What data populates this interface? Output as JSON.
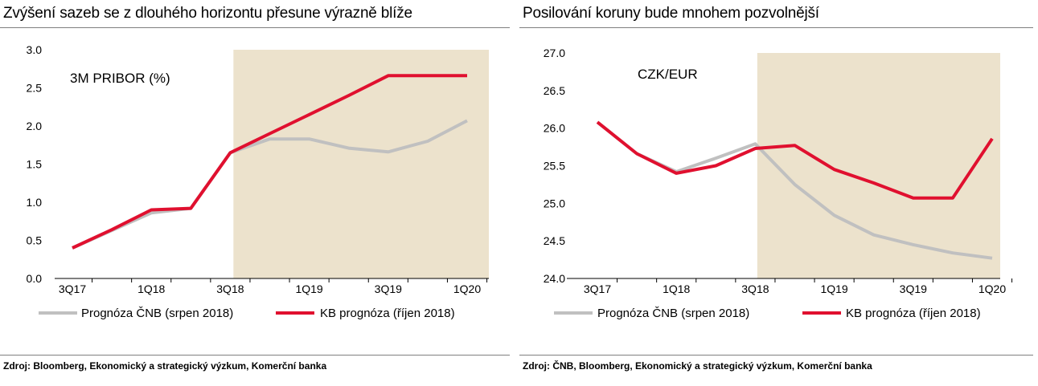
{
  "colors": {
    "forecast_shade": "#ece2cc",
    "cnb_line": "#c0c0c0",
    "kb_line": "#e0102f",
    "axis": "#000000"
  },
  "left": {
    "title": "Zvýšení sazeb se z dlouhého horizontu přesune výrazně blíže",
    "source": "Zdroj: Bloomberg, Ekonomický a strategický výzkum, Komerční banka",
    "chart_data": {
      "type": "line",
      "annotation": "3M PRIBOR  (%)",
      "x": [
        0,
        1,
        2,
        3,
        4,
        5,
        6,
        7,
        8,
        9,
        10
      ],
      "x_tick_labels": [
        "3Q17",
        "",
        "1Q18",
        "",
        "3Q18",
        "",
        "1Q19",
        "",
        "3Q19",
        "",
        "1Q20"
      ],
      "ylim": [
        0,
        3
      ],
      "y_ticks": [
        "0.0",
        "0.5",
        "1.0",
        "1.5",
        "2.0",
        "2.5",
        "3.0"
      ],
      "y_tick_values": [
        0,
        0.5,
        1,
        1.5,
        2,
        2.5,
        3
      ],
      "forecast_region": [
        4.08,
        10.8
      ],
      "series": [
        {
          "name": "Prognóza ČNB (srpen 2018)",
          "key": "cnb",
          "values": [
            0.4,
            0.63,
            0.86,
            0.92,
            1.65,
            1.83,
            1.83,
            1.71,
            1.66,
            1.8,
            2.07
          ]
        },
        {
          "name": "KB prognóza (říjen 2018)",
          "key": "kb",
          "values": [
            0.4,
            0.64,
            0.9,
            0.92,
            1.65,
            1.9,
            2.15,
            2.4,
            2.66,
            2.66,
            2.66
          ]
        }
      ]
    }
  },
  "right": {
    "title": "Posilování koruny bude mnohem pozvolnější",
    "source": "Zdroj: ČNB, Bloomberg, Ekonomický a strategický výzkum, Komerční banka",
    "chart_data": {
      "type": "line",
      "annotation": "CZK/EUR",
      "x": [
        0,
        1,
        2,
        3,
        4,
        5,
        6,
        7,
        8,
        9,
        10
      ],
      "x_tick_labels": [
        "3Q17",
        "",
        "1Q18",
        "",
        "3Q18",
        "",
        "1Q19",
        "",
        "3Q19",
        "",
        "1Q20"
      ],
      "ylim": [
        24,
        27
      ],
      "y_ticks": [
        "24.0",
        "24.5",
        "25.0",
        "25.5",
        "26.0",
        "26.5",
        "27.0"
      ],
      "y_tick_values": [
        24,
        24.5,
        25,
        25.5,
        26,
        26.5,
        27
      ],
      "forecast_region": [
        4.05,
        10.8
      ],
      "series": [
        {
          "name": "Prognóza ČNB (srpen 2018)",
          "key": "cnb",
          "values": [
            26.08,
            25.66,
            25.42,
            25.6,
            25.79,
            25.25,
            24.84,
            24.58,
            24.45,
            24.34,
            24.27
          ]
        },
        {
          "name": "KB prognóza (říjen 2018)",
          "key": "kb",
          "values": [
            26.08,
            25.66,
            25.4,
            25.5,
            25.73,
            25.77,
            25.45,
            25.27,
            25.07,
            25.07,
            25.86
          ]
        }
      ]
    }
  }
}
